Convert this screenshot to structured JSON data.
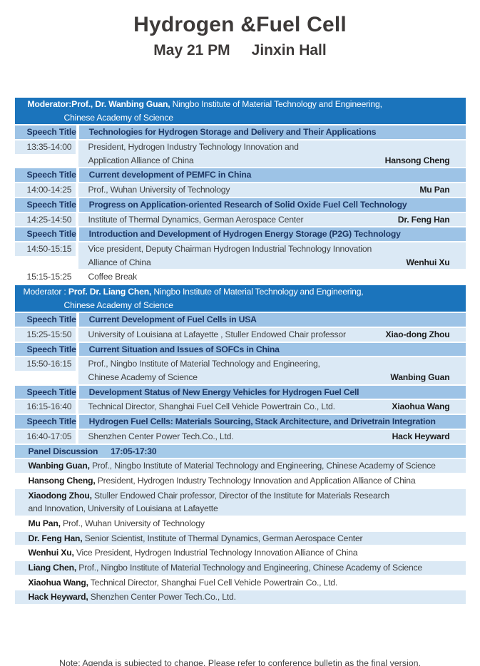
{
  "title": "Hydrogen &Fuel Cell",
  "subtitle": {
    "date": "May 21 PM",
    "hall": "Jinxin Hall"
  },
  "labels": {
    "speech_title": "Speech Title"
  },
  "moderators": [
    {
      "name_bold": "Moderator:Prof., Dr. Wanbing Guan,",
      "affiliation": " Ningbo Institute of Material Technology and Engineering,",
      "line2": "Chinese Academy of Science"
    },
    {
      "prefix": "Moderator : ",
      "name_bold": "Prof. Dr. Liang Chen,",
      "affiliation": " Ningbo Institute of Material Technology and Engineering,",
      "line2": "Chinese Academy of Science"
    }
  ],
  "talks": [
    {
      "time": "13:35-14:00",
      "title": "Technologies for Hydrogen Storage and Delivery and Their Applications",
      "desc1": "President, Hydrogen Industry Technology Innovation and",
      "desc2": "Application Alliance of China",
      "speaker": "Hansong Cheng"
    },
    {
      "time": "14:00-14:25",
      "title": "Current development of PEMFC in China",
      "desc1": "Prof., Wuhan University of Technology",
      "speaker": "Mu Pan"
    },
    {
      "time": "14:25-14:50",
      "title": "Progress on Application-oriented Research of Solid Oxide Fuel Cell Technology",
      "desc1": "Institute of Thermal Dynamics, German Aerospace Center",
      "speaker": "Dr. Feng Han"
    },
    {
      "time": "14:50-15:15",
      "title": "Introduction and Development of Hydrogen Energy Storage (P2G) Technology",
      "desc1": "Vice president, Deputy Chairman Hydrogen Industrial Technology Innovation",
      "desc2": "Alliance of China",
      "speaker": "Wenhui Xu"
    },
    {
      "time": "15:25-15:50",
      "title": "Current Development of Fuel Cells in USA",
      "desc1": "University of Louisiana at Lafayette , Stuller Endowed Chair professor",
      "speaker": "Xiao-dong Zhou"
    },
    {
      "time": "15:50-16:15",
      "title": "Current Situation and Issues of SOFCs in China",
      "desc1": "Prof., Ningbo Institute of Material Technology and Engineering,",
      "desc2": "Chinese Academy of Science",
      "speaker": "Wanbing Guan"
    },
    {
      "time": "16:15-16:40",
      "title": "Development Status of New Energy Vehicles for Hydrogen Fuel Cell",
      "desc1": "Technical Director, Shanghai Fuel Cell Vehicle Powertrain Co., Ltd.",
      "speaker": "Xiaohua Wang"
    },
    {
      "time": "16:40-17:05",
      "title": "Hydrogen Fuel Cells: Materials Sourcing, Stack Architecture, and Drivetrain Integration",
      "desc1": "Shenzhen Center Power Tech.Co., Ltd.",
      "speaker": "Hack Heyward"
    }
  ],
  "coffee_break": {
    "time": "15:15-15:25",
    "label": "Coffee Break"
  },
  "panel": {
    "label": "Panel Discussion",
    "time": "17:05-17:30"
  },
  "panelists": [
    {
      "name": "Wanbing Guan,",
      "detail": " Prof., Ningbo Institute of Material Technology and Engineering, Chinese Academy of Science"
    },
    {
      "name": "Hansong Cheng,",
      "detail": " President, Hydrogen Industry Technology Innovation and Application Alliance of China"
    },
    {
      "name": "Xiaodong Zhou,",
      "detail": " Stuller Endowed Chair professor, Director of the Institute for Materials Research",
      "detail2": "and Innovation, University of Louisiana at Lafayette"
    },
    {
      "name": "Mu Pan,",
      "detail": " Prof., Wuhan University of Technology"
    },
    {
      "name": "Dr. Feng Han,",
      "detail": " Senior Scientist, Institute of Thermal Dynamics, German Aerospace Center"
    },
    {
      "name": "Wenhui Xu,",
      "detail": " Vice President, Hydrogen Industrial Technology Innovation Alliance of China"
    },
    {
      "name": "Liang Chen,",
      "detail": " Prof., Ningbo Institute of Material Technology and Engineering, Chinese Academy of Science"
    },
    {
      "name": "Xiaohua Wang,",
      "detail": " Technical Director, Shanghai Fuel Cell Vehicle Powertrain Co., Ltd."
    },
    {
      "name": "Hack Heyward,",
      "detail": " Shenzhen Center Power Tech.Co., Ltd."
    }
  ],
  "note": "Note: Agenda is subjected to change. Please refer to conference bulletin as the final version.",
  "colors": {
    "header_blue": "#1B74BC",
    "speech_row_blue": "#9DC3E6",
    "panel_header_blue": "#A6CBE9",
    "light_row_blue": "#DBE9F5",
    "title_navy": "#1F3864",
    "body_gray": "#3F3F3F",
    "name_black": "#1D1D1D"
  }
}
